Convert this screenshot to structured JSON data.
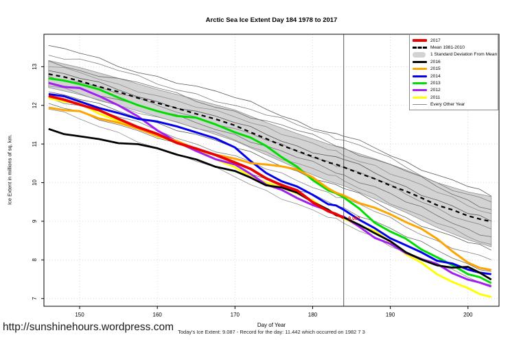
{
  "page": {
    "url": "http://sunshinehours.wordpress.com"
  },
  "chart_data": {
    "type": "line",
    "title": "Arctic Sea Ice Extent Day 184 1978 to 2017",
    "xlabel": "Day of Year",
    "ylabel": "Ice Extent in millions of sq. km.",
    "subtitle": "Today's Ice Extent: 9.087  - Record for the day: 11.442 which occurred on 1982 7 3",
    "xlim": [
      145.4,
      204
    ],
    "ylim": [
      6.8,
      13.84
    ],
    "xticks": [
      150,
      160,
      170,
      180,
      190,
      200
    ],
    "yticks": [
      7,
      8,
      9,
      10,
      11,
      12,
      13
    ],
    "grid": "dotted",
    "legend_position": "top-right",
    "vline": {
      "x": 184,
      "color": "#555555"
    },
    "annotation": {
      "text": "9.087",
      "x": 184.4,
      "y": 9.03,
      "color": "#EE0000"
    },
    "x": [
      146,
      150,
      155,
      160,
      165,
      170,
      174,
      178,
      182,
      184,
      188,
      192,
      196,
      200,
      203
    ],
    "band": {
      "name": "1 Standard Deviation From Mean",
      "fill": "#D3D3D3",
      "edge": "#909090",
      "upper": [
        13.16,
        12.98,
        12.7,
        12.41,
        12.15,
        11.88,
        11.56,
        11.27,
        11.0,
        10.88,
        10.62,
        10.33,
        10.0,
        9.76,
        9.64
      ],
      "lower": [
        12.46,
        12.28,
        12.0,
        11.71,
        11.41,
        11.08,
        10.72,
        10.37,
        10.04,
        9.92,
        9.58,
        9.23,
        8.84,
        8.52,
        8.34
      ]
    },
    "series": [
      {
        "name": "Mean 1981-2010",
        "color": "#000000",
        "width": 2.3,
        "dash": "6,5",
        "values": [
          12.81,
          12.63,
          12.35,
          12.06,
          11.78,
          11.48,
          11.14,
          10.82,
          10.52,
          10.4,
          10.1,
          9.78,
          9.42,
          9.14,
          8.99
        ]
      },
      {
        "name": "2011",
        "color": "#FFFF00",
        "width": 3,
        "values": [
          12.19,
          12.05,
          11.6,
          11.2,
          10.85,
          10.4,
          10.0,
          9.72,
          9.28,
          9.08,
          8.75,
          8.15,
          7.63,
          7.27,
          7.04
        ]
      },
      {
        "name": "2012",
        "color": "#A020F0",
        "width": 3,
        "values": [
          12.58,
          12.45,
          12.0,
          11.35,
          10.82,
          10.47,
          9.95,
          9.6,
          9.28,
          9.12,
          8.57,
          8.18,
          7.9,
          7.49,
          7.31
        ]
      },
      {
        "name": "2013",
        "color": "#00DD00",
        "width": 3,
        "values": [
          12.7,
          12.55,
          12.2,
          11.85,
          11.68,
          11.3,
          10.95,
          10.41,
          9.8,
          9.62,
          8.96,
          8.55,
          8.07,
          7.63,
          7.4
        ]
      },
      {
        "name": "2014",
        "color": "#0000EE",
        "width": 3,
        "values": [
          12.29,
          12.1,
          11.8,
          11.58,
          11.3,
          10.91,
          10.25,
          9.9,
          9.44,
          9.3,
          8.82,
          8.38,
          7.98,
          7.75,
          7.63
        ]
      },
      {
        "name": "2015",
        "color": "#FFA500",
        "width": 3,
        "values": [
          11.94,
          11.85,
          11.55,
          11.21,
          10.87,
          10.62,
          10.47,
          10.34,
          9.85,
          9.67,
          9.35,
          8.98,
          8.55,
          7.93,
          7.74
        ]
      },
      {
        "name": "2016",
        "color": "#000000",
        "width": 2.8,
        "values": [
          11.39,
          11.2,
          11.02,
          10.89,
          10.6,
          10.3,
          9.93,
          9.74,
          9.3,
          9.1,
          8.69,
          8.2,
          7.86,
          7.82,
          7.49
        ]
      },
      {
        "name": "2017",
        "color": "#EE0000",
        "width": 3.8,
        "values": [
          12.24,
          12.02,
          11.65,
          11.26,
          10.88,
          10.52,
          10.11,
          9.8,
          9.26,
          9.087,
          null,
          null,
          null,
          null,
          null
        ]
      }
    ],
    "other_years": {
      "name": "Every Other Year",
      "width": 0.8,
      "colors": [
        "#565656",
        "#7d7d7d",
        "#696969",
        "#8d8d8d"
      ],
      "lines": [
        [
          13.55,
          13.35,
          13.0,
          12.75,
          12.5,
          12.2,
          11.9,
          11.6,
          11.3,
          11.2,
          10.9,
          10.55,
          10.2,
          9.9,
          9.65
        ],
        [
          13.3,
          13.2,
          12.9,
          12.55,
          12.3,
          12.0,
          11.75,
          11.5,
          11.25,
          11.1,
          10.8,
          10.4,
          10.0,
          9.7,
          9.5
        ],
        [
          13.15,
          12.9,
          12.7,
          12.45,
          12.1,
          11.85,
          11.6,
          11.35,
          11.05,
          10.9,
          10.6,
          10.3,
          9.9,
          9.55,
          9.3
        ],
        [
          13.0,
          12.85,
          12.55,
          12.25,
          11.95,
          11.7,
          11.45,
          11.15,
          10.85,
          10.7,
          10.45,
          10.1,
          9.75,
          9.4,
          9.2
        ],
        [
          12.9,
          12.7,
          12.4,
          12.1,
          11.85,
          11.55,
          11.25,
          10.95,
          10.7,
          10.6,
          10.25,
          9.9,
          9.55,
          9.2,
          9.0
        ],
        [
          12.75,
          12.6,
          12.3,
          12.0,
          11.7,
          11.4,
          11.1,
          10.8,
          10.55,
          10.4,
          10.1,
          9.7,
          9.35,
          9.0,
          8.8
        ],
        [
          12.6,
          12.45,
          12.15,
          11.85,
          11.55,
          11.25,
          10.95,
          10.65,
          10.35,
          10.2,
          9.9,
          9.5,
          9.15,
          8.8,
          8.6
        ],
        [
          12.5,
          12.3,
          12.0,
          11.7,
          11.4,
          11.1,
          10.8,
          10.5,
          10.2,
          10.05,
          9.7,
          9.3,
          8.95,
          8.6,
          8.4
        ],
        [
          12.35,
          12.15,
          11.85,
          11.55,
          11.25,
          10.9,
          10.6,
          10.3,
          10.0,
          9.85,
          9.5,
          9.1,
          8.75,
          8.45,
          8.25
        ],
        [
          12.2,
          12.0,
          11.7,
          11.35,
          11.0,
          10.7,
          10.35,
          10.05,
          9.75,
          9.6,
          9.25,
          8.85,
          8.5,
          8.2,
          8.0
        ],
        [
          12.05,
          11.85,
          11.5,
          11.15,
          10.8,
          10.45,
          10.1,
          9.8,
          9.5,
          9.35,
          9.0,
          8.6,
          8.25,
          7.9,
          7.7
        ],
        [
          11.9,
          11.65,
          11.3,
          10.9,
          10.55,
          10.15,
          9.8,
          9.45,
          9.1,
          8.95,
          8.6,
          8.2,
          7.85,
          7.55,
          7.35
        ]
      ]
    }
  },
  "legend": {
    "entries": [
      {
        "label": "2017",
        "type": "line",
        "color": "#EE0000",
        "thick": 4
      },
      {
        "label": "Mean 1981-2010",
        "type": "dash",
        "color": "#000000",
        "thick": 3
      },
      {
        "label": "1 Standard Deviation From Mean",
        "type": "band",
        "color": "#D3D3D3",
        "thick": 8
      },
      {
        "label": "2016",
        "type": "line",
        "color": "#000000",
        "thick": 3
      },
      {
        "label": "2015",
        "type": "line",
        "color": "#FFA500",
        "thick": 3
      },
      {
        "label": "2014",
        "type": "line",
        "color": "#0000EE",
        "thick": 3
      },
      {
        "label": "2013",
        "type": "line",
        "color": "#00DD00",
        "thick": 3
      },
      {
        "label": "2012",
        "type": "line",
        "color": "#A020F0",
        "thick": 3
      },
      {
        "label": "2011",
        "type": "line",
        "color": "#FFFF00",
        "thick": 3
      },
      {
        "label": "Every Other Year",
        "type": "line",
        "color": "#888888",
        "thick": 1
      }
    ]
  }
}
